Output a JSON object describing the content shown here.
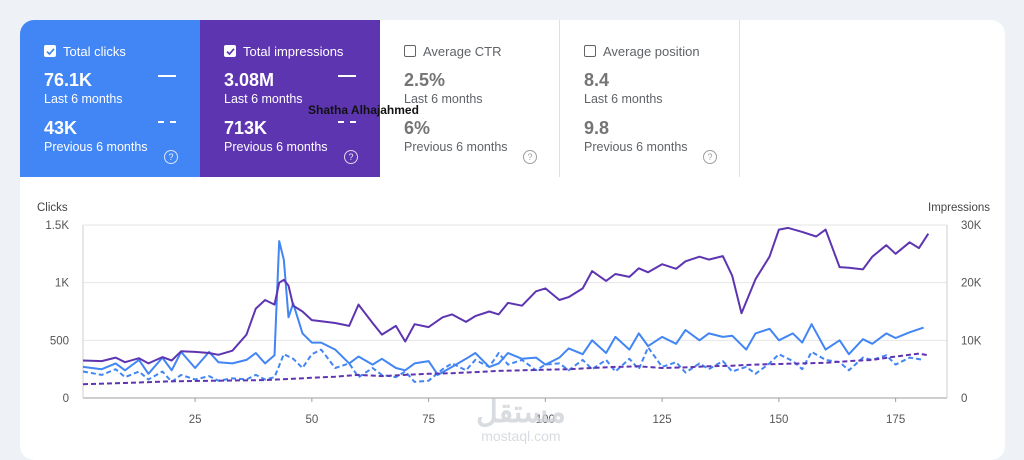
{
  "metrics": {
    "clicks": {
      "label": "Total clicks",
      "current": "76.1K",
      "current_period": "Last 6 months",
      "previous": "43K",
      "previous_period": "Previous 6 months",
      "checked": true,
      "color": "#4285f4"
    },
    "impressions": {
      "label": "Total impressions",
      "current": "3.08M",
      "current_period": "Last 6 months",
      "previous": "713K",
      "previous_period": "Previous 6 months",
      "checked": true,
      "color": "#5e35b1"
    },
    "ctr": {
      "label": "Average CTR",
      "current": "2.5%",
      "current_period": "Last 6 months",
      "previous": "6%",
      "previous_period": "Previous 6 months",
      "checked": false
    },
    "position": {
      "label": "Average position",
      "current": "8.4",
      "current_period": "Last 6 months",
      "previous": "9.8",
      "previous_period": "Previous 6 months",
      "checked": false
    }
  },
  "overlay_text": "Shatha Alhajahmed",
  "help_glyph": "?",
  "watermark": {
    "arabic": "مستقل",
    "latin": "mostaql.com"
  },
  "chart_data": {
    "type": "line",
    "ylabel_left": "Clicks",
    "ylabel_right": "Impressions",
    "y_left_ticks": [
      "1.5K",
      "1K",
      "500",
      "0"
    ],
    "y_right_ticks": [
      "30K",
      "20K",
      "10K",
      "0"
    ],
    "ylim_left": [
      0,
      1500
    ],
    "ylim_right": [
      0,
      30000
    ],
    "x_ticks": [
      "25",
      "50",
      "75",
      "100",
      "125",
      "150",
      "175"
    ],
    "xlim": [
      1,
      186
    ],
    "series": [
      {
        "axis": "left",
        "style": "solid",
        "color": "#4285f4",
        "x": [
          1,
          5,
          8,
          10,
          13,
          15,
          18,
          20,
          22,
          25,
          28,
          30,
          33,
          36,
          38,
          40,
          42,
          43,
          44,
          45,
          46,
          48,
          50,
          52,
          55,
          58,
          60,
          63,
          65,
          68,
          70,
          72,
          75,
          77,
          80,
          83,
          85,
          88,
          90,
          92,
          95,
          98,
          100,
          103,
          105,
          108,
          110,
          113,
          115,
          118,
          120,
          122,
          125,
          128,
          130,
          133,
          135,
          138,
          140,
          143,
          145,
          148,
          150,
          153,
          155,
          157,
          160,
          163,
          165,
          168,
          170,
          173,
          175,
          178,
          181
        ],
        "y": [
          270,
          250,
          300,
          240,
          330,
          210,
          350,
          240,
          400,
          260,
          400,
          310,
          300,
          330,
          390,
          300,
          370,
          1360,
          1200,
          700,
          820,
          560,
          480,
          480,
          420,
          300,
          360,
          290,
          340,
          260,
          240,
          300,
          320,
          200,
          270,
          340,
          390,
          270,
          300,
          390,
          340,
          350,
          290,
          350,
          430,
          380,
          500,
          390,
          530,
          420,
          560,
          450,
          530,
          470,
          590,
          500,
          560,
          530,
          540,
          420,
          560,
          600,
          500,
          560,
          480,
          640,
          420,
          500,
          380,
          510,
          470,
          560,
          520,
          570,
          610
        ]
      },
      {
        "axis": "left",
        "style": "dashed",
        "color": "#4285f4",
        "x": [
          1,
          5,
          8,
          10,
          13,
          15,
          18,
          20,
          22,
          25,
          28,
          30,
          33,
          36,
          38,
          40,
          42,
          44,
          46,
          48,
          50,
          52,
          55,
          58,
          60,
          63,
          65,
          68,
          70,
          72,
          75,
          78,
          80,
          83,
          85,
          88,
          90,
          92,
          95,
          98,
          100,
          103,
          105,
          108,
          110,
          113,
          115,
          118,
          120,
          122,
          125,
          128,
          130,
          133,
          135,
          138,
          140,
          143,
          145,
          148,
          150,
          153,
          155,
          157,
          160,
          163,
          165,
          168,
          170,
          173,
          175,
          178,
          181
        ],
        "y": [
          230,
          200,
          250,
          180,
          230,
          160,
          230,
          140,
          200,
          160,
          190,
          150,
          170,
          160,
          200,
          160,
          180,
          380,
          340,
          260,
          380,
          420,
          260,
          300,
          180,
          260,
          200,
          180,
          230,
          140,
          150,
          250,
          300,
          240,
          330,
          270,
          390,
          290,
          330,
          240,
          290,
          300,
          240,
          330,
          250,
          330,
          230,
          340,
          250,
          440,
          270,
          310,
          220,
          300,
          250,
          320,
          230,
          270,
          210,
          300,
          380,
          320,
          250,
          400,
          330,
          310,
          240,
          350,
          330,
          370,
          290,
          350,
          330
        ]
      },
      {
        "axis": "right",
        "style": "solid",
        "color": "#5e35b1",
        "x": [
          1,
          5,
          8,
          10,
          13,
          15,
          18,
          20,
          22,
          25,
          28,
          30,
          33,
          36,
          38,
          40,
          42,
          43,
          44,
          45,
          46,
          48,
          50,
          52,
          55,
          58,
          60,
          63,
          65,
          68,
          70,
          72,
          75,
          78,
          80,
          83,
          85,
          88,
          90,
          92,
          95,
          98,
          100,
          103,
          105,
          108,
          110,
          113,
          115,
          118,
          120,
          122,
          125,
          128,
          130,
          133,
          135,
          138,
          140,
          142,
          145,
          148,
          150,
          152,
          155,
          158,
          160,
          163,
          165,
          168,
          170,
          173,
          175,
          178,
          180,
          182
        ],
        "y": [
          6500,
          6400,
          7000,
          6200,
          6900,
          6000,
          7100,
          6500,
          8100,
          8000,
          7800,
          7500,
          8200,
          11000,
          15500,
          17000,
          16200,
          20000,
          20500,
          19500,
          16000,
          15000,
          13500,
          13300,
          13000,
          12500,
          16200,
          13000,
          11000,
          12500,
          9800,
          12800,
          12300,
          14000,
          14500,
          13200,
          14200,
          15000,
          14500,
          16500,
          16000,
          18500,
          19000,
          17000,
          17500,
          19000,
          22000,
          20300,
          21500,
          21000,
          22500,
          21800,
          23200,
          22400,
          23700,
          24500,
          24000,
          24600,
          21200,
          14700,
          20600,
          24500,
          29200,
          29500,
          28800,
          28000,
          29200,
          22700,
          22600,
          22300,
          24500,
          26500,
          25000,
          27000,
          26000,
          28500
        ]
      },
      {
        "axis": "right",
        "style": "dashed",
        "color": "#5e35b1",
        "x": [
          1,
          10,
          20,
          30,
          40,
          45,
          50,
          55,
          60,
          65,
          70,
          75,
          80,
          85,
          90,
          95,
          100,
          105,
          110,
          115,
          120,
          125,
          130,
          135,
          140,
          145,
          150,
          155,
          160,
          165,
          170,
          175,
          180,
          182
        ],
        "y": [
          2400,
          2600,
          2900,
          3000,
          3100,
          3300,
          3500,
          3700,
          4000,
          3800,
          4000,
          4200,
          4300,
          4500,
          4700,
          4800,
          4900,
          5000,
          5200,
          5400,
          5500,
          5200,
          5300,
          5500,
          5600,
          5800,
          5900,
          6000,
          6100,
          6400,
          6600,
          7200,
          7700,
          7400
        ]
      }
    ]
  }
}
